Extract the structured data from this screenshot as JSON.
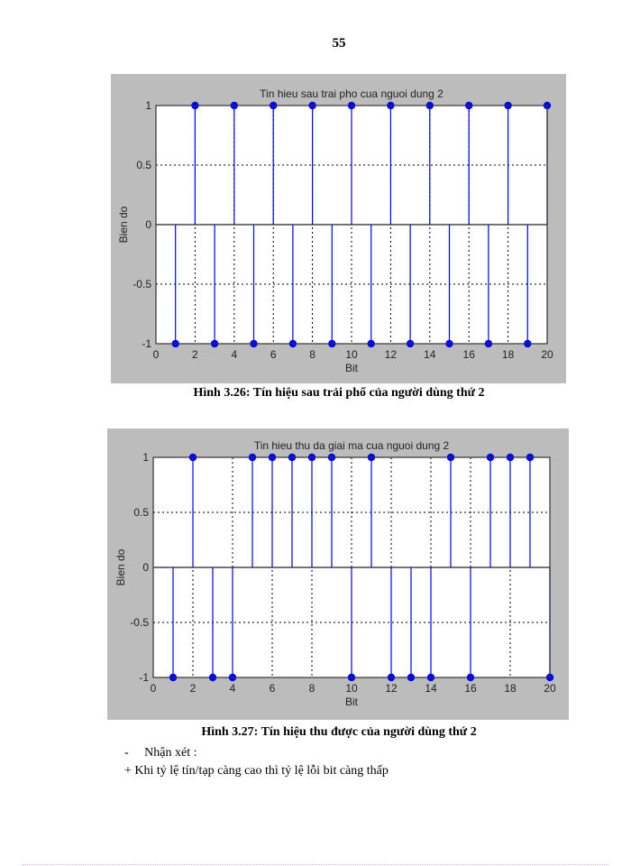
{
  "page": {
    "number": "55"
  },
  "figures": [
    {
      "caption": "Hình 3.26:  Tín hiệu sau trải phổ của người dùng thứ 2"
    },
    {
      "caption": "Hình 3.27:  Tín hiệu thu được của người dùng thứ 2"
    }
  ],
  "text": {
    "remark_bullet": "-",
    "remark_label": "Nhận xét :",
    "remark_line": "+ Khi tỷ lệ tín/tạp càng cao thì tỷ lệ lỗi bit càng thấp"
  },
  "colors": {
    "stem": "#0000ff",
    "figure_bg": "#c0c0c0",
    "axes_bg": "#ffffff",
    "grid": "#000000"
  },
  "chart_data": [
    {
      "type": "stem",
      "title": "Tin hieu sau trai pho cua nguoi dung 2",
      "xlabel": "Bit",
      "ylabel": "Bien do",
      "xlim": [
        0,
        20
      ],
      "ylim": [
        -1,
        1
      ],
      "xticks": [
        "0",
        "2",
        "4",
        "6",
        "8",
        "10",
        "12",
        "14",
        "16",
        "18",
        "20"
      ],
      "yticks": [
        "-1",
        "-0.5",
        "0",
        "0.5",
        "1"
      ],
      "grid": true,
      "x": [
        1,
        2,
        3,
        4,
        5,
        6,
        7,
        8,
        9,
        10,
        11,
        12,
        13,
        14,
        15,
        16,
        17,
        18,
        19,
        20
      ],
      "values": [
        -1,
        1,
        -1,
        1,
        -1,
        1,
        -1,
        1,
        -1,
        1,
        -1,
        1,
        -1,
        1,
        -1,
        1,
        -1,
        1,
        -1,
        1
      ]
    },
    {
      "type": "stem",
      "title": "Tin hieu thu da giai ma cua nguoi dung 2",
      "xlabel": "Bit",
      "ylabel": "Bien do",
      "xlim": [
        0,
        20
      ],
      "ylim": [
        -1,
        1
      ],
      "xticks": [
        "0",
        "2",
        "4",
        "6",
        "8",
        "10",
        "12",
        "14",
        "16",
        "18",
        "20"
      ],
      "yticks": [
        "-1",
        "-0.5",
        "0",
        "0.5",
        "1"
      ],
      "grid": true,
      "x": [
        1,
        2,
        3,
        4,
        5,
        6,
        7,
        8,
        9,
        10,
        11,
        12,
        13,
        14,
        15,
        16,
        17,
        18,
        19,
        20
      ],
      "values": [
        -1,
        1,
        -1,
        -1,
        1,
        1,
        1,
        1,
        1,
        -1,
        1,
        -1,
        -1,
        -1,
        1,
        -1,
        1,
        1,
        1,
        -1
      ]
    }
  ]
}
